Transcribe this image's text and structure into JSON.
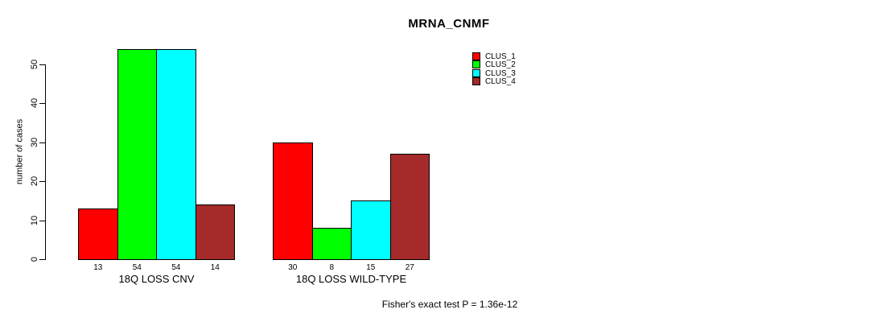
{
  "chart_data": {
    "type": "bar",
    "title": "MRNA_CNMF",
    "ylabel": "number of cases",
    "xlabel": "",
    "ylim": [
      0,
      50
    ],
    "yticks": [
      0,
      10,
      20,
      30,
      40,
      50
    ],
    "grid": false,
    "legend_position": "right",
    "categories": [
      "18Q LOSS CNV",
      "18Q LOSS WILD-TYPE"
    ],
    "series": [
      {
        "name": "CLUS_1",
        "color": "#FF0000",
        "values": [
          13,
          30
        ]
      },
      {
        "name": "CLUS_2",
        "color": "#00FF00",
        "values": [
          54,
          8
        ]
      },
      {
        "name": "CLUS_3",
        "color": "#00FFFF",
        "values": [
          54,
          15
        ]
      },
      {
        "name": "CLUS_4",
        "color": "#A52A2A",
        "values": [
          14,
          27
        ]
      }
    ],
    "bar_value_labels": [
      [
        "13",
        "54",
        "54",
        "14"
      ],
      [
        "30",
        "8",
        "15",
        "27"
      ]
    ],
    "annotation": "Fisher's exact test P = 1.36e-12"
  }
}
